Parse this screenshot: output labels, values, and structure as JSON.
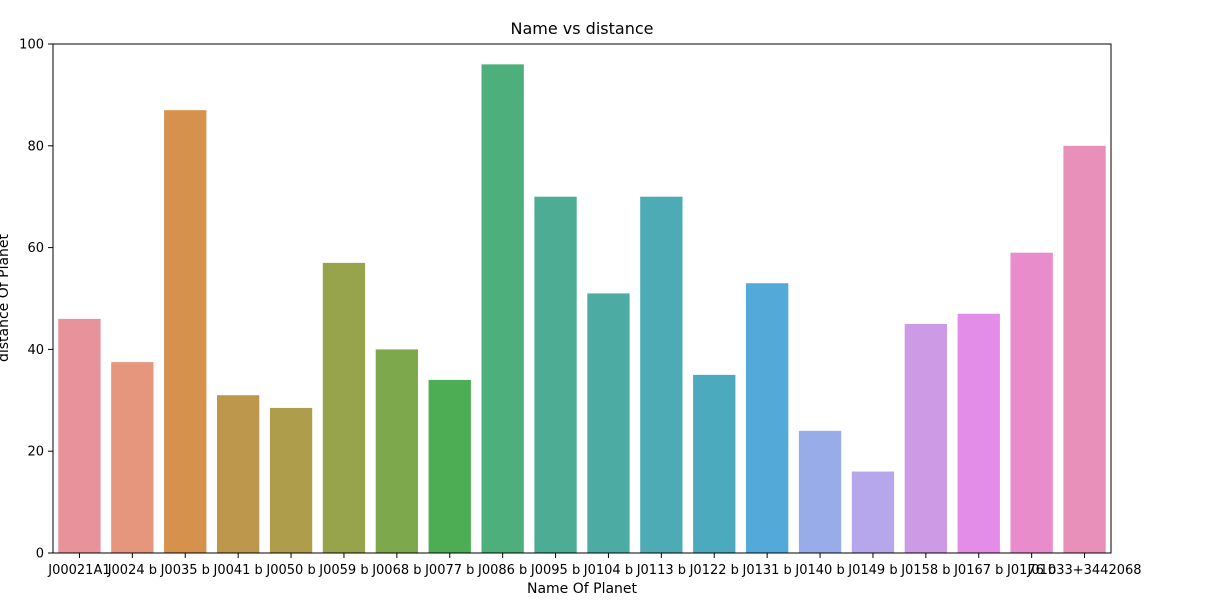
{
  "chart_data": {
    "type": "bar",
    "title": "Name vs distance",
    "xlabel": "Name Of Planet",
    "ylabel": "distance Of Planet",
    "ylim": [
      0,
      100
    ],
    "yticks": [
      0,
      20,
      40,
      60,
      80,
      100
    ],
    "grid": false,
    "legend": "none",
    "categories": [
      "J00021A1",
      "J0024 b",
      "J0035 b",
      "J0041 b",
      "J0050 b",
      "J0059 b",
      "J0068 b",
      "J0077 b",
      "J0086 b",
      "J0095 b",
      "J0104 b",
      "J0113 b",
      "J0122 b",
      "J0131 b",
      "J0140 b",
      "J0149 b",
      "J0158 b",
      "J0167 b",
      "J0176 b",
      "J01033+3442068"
    ],
    "values": [
      46,
      37.5,
      87,
      31,
      28.5,
      57,
      40,
      34,
      96,
      70,
      51,
      70,
      35,
      53,
      24,
      16,
      45,
      47,
      59,
      80
    ],
    "colors": [
      "#e8939c",
      "#e6967c",
      "#d6914c",
      "#bd984c",
      "#ae9e4c",
      "#98a44c",
      "#7ea84c",
      "#4cad54",
      "#4caf7c",
      "#4cad94",
      "#4caca4",
      "#4cabb4",
      "#4caabf",
      "#53a9d8",
      "#98acea",
      "#b6a7ec",
      "#cd9ae6",
      "#e38ce8",
      "#e88ccc",
      "#e890ba"
    ]
  }
}
